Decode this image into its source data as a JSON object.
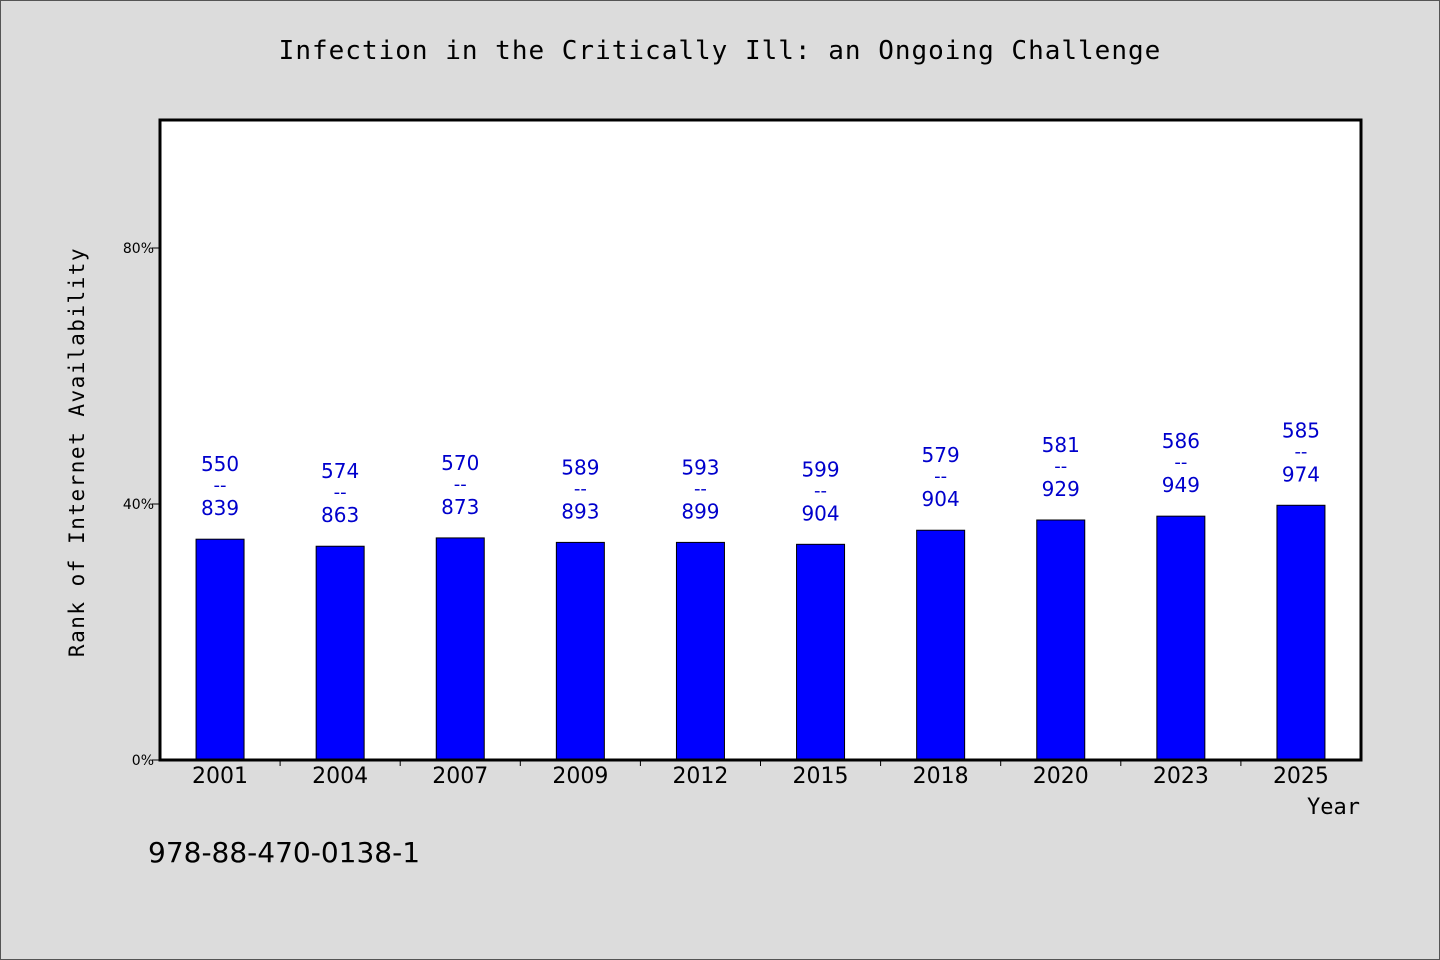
{
  "chart_data": {
    "type": "bar",
    "title": "Infection in the Critically Ill: an Ongoing Challenge",
    "xlabel": "Year",
    "ylabel": "Rank of Internet Availability",
    "ylim": [
      0,
      100
    ],
    "yticks": [
      {
        "value": 0,
        "label": "0%"
      },
      {
        "value": 40,
        "label": "40%"
      },
      {
        "value": 80,
        "label": "80%"
      }
    ],
    "grid": false,
    "bar_color": "#0000ff",
    "label_color": "#0000cc",
    "categories": [
      "2001",
      "2004",
      "2007",
      "2009",
      "2012",
      "2015",
      "2018",
      "2020",
      "2023",
      "2025"
    ],
    "values": [
      34.5,
      33.4,
      34.7,
      34.0,
      34.0,
      33.7,
      35.9,
      37.5,
      38.1,
      39.8
    ],
    "data_labels": [
      {
        "top": "550",
        "sep": "--",
        "bottom": "839"
      },
      {
        "top": "574",
        "sep": "--",
        "bottom": "863"
      },
      {
        "top": "570",
        "sep": "--",
        "bottom": "873"
      },
      {
        "top": "589",
        "sep": "--",
        "bottom": "893"
      },
      {
        "top": "593",
        "sep": "--",
        "bottom": "899"
      },
      {
        "top": "599",
        "sep": "--",
        "bottom": "904"
      },
      {
        "top": "579",
        "sep": "--",
        "bottom": "904"
      },
      {
        "top": "581",
        "sep": "--",
        "bottom": "929"
      },
      {
        "top": "586",
        "sep": "--",
        "bottom": "949"
      },
      {
        "top": "585",
        "sep": "--",
        "bottom": "974"
      }
    ]
  },
  "footer": {
    "isbn": "978-88-470-0138-1"
  }
}
